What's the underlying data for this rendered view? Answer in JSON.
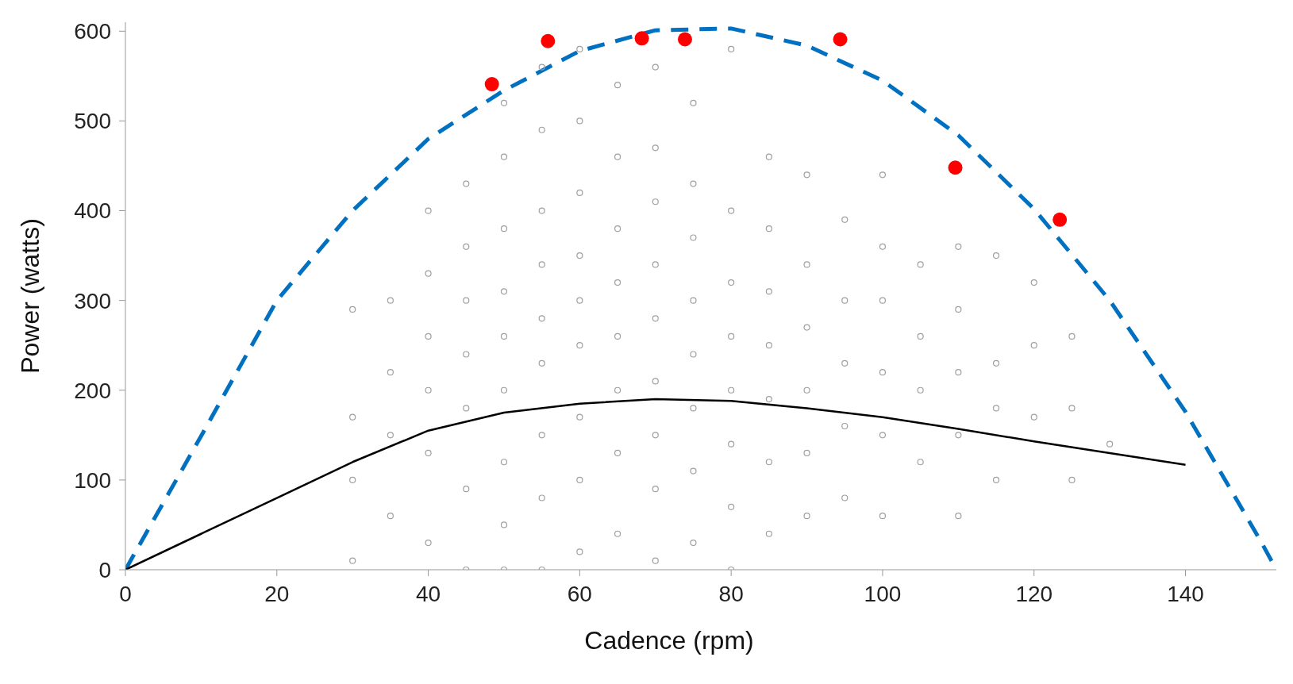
{
  "chart_data": {
    "type": "scatter",
    "xlabel": "Cadence (rpm)",
    "ylabel": "Power (watts)",
    "xlim": [
      0,
      152
    ],
    "ylim": [
      0,
      610
    ],
    "xticks": [
      0,
      20,
      40,
      60,
      80,
      100,
      120,
      140
    ],
    "yticks": [
      0,
      100,
      200,
      300,
      400,
      500,
      600
    ],
    "marker": "circle",
    "series": [
      {
        "color": "#a0a0a0",
        "x": [
          30,
          30,
          30,
          30,
          35,
          35,
          35,
          35,
          40,
          40,
          40,
          40,
          40,
          40,
          45,
          45,
          45,
          45,
          45,
          45,
          45,
          50,
          50,
          50,
          50,
          50,
          50,
          50,
          50,
          50,
          55,
          55,
          55,
          55,
          55,
          55,
          55,
          55,
          55,
          60,
          60,
          60,
          60,
          60,
          60,
          60,
          60,
          60,
          65,
          65,
          65,
          65,
          65,
          65,
          65,
          65,
          70,
          70,
          70,
          70,
          70,
          70,
          70,
          70,
          70,
          75,
          75,
          75,
          75,
          75,
          75,
          75,
          75,
          80,
          80,
          80,
          80,
          80,
          80,
          80,
          80,
          85,
          85,
          85,
          85,
          85,
          85,
          85,
          90,
          90,
          90,
          90,
          90,
          90,
          95,
          95,
          95,
          95,
          95,
          100,
          100,
          100,
          100,
          100,
          100,
          105,
          105,
          105,
          105,
          110,
          110,
          110,
          110,
          110,
          115,
          115,
          115,
          115,
          120,
          120,
          120,
          125,
          125,
          125,
          130
        ],
        "values": [
          10,
          100,
          170,
          290,
          60,
          150,
          220,
          300,
          30,
          130,
          200,
          260,
          330,
          400,
          0,
          90,
          180,
          240,
          300,
          360,
          430,
          0,
          50,
          120,
          200,
          260,
          310,
          380,
          460,
          520,
          0,
          80,
          150,
          230,
          280,
          340,
          400,
          490,
          560,
          20,
          100,
          170,
          250,
          300,
          350,
          420,
          500,
          580,
          40,
          130,
          200,
          260,
          320,
          380,
          460,
          540,
          10,
          90,
          150,
          210,
          280,
          340,
          410,
          470,
          560,
          30,
          110,
          180,
          240,
          300,
          370,
          430,
          520,
          0,
          70,
          140,
          200,
          260,
          320,
          400,
          580,
          40,
          120,
          190,
          250,
          310,
          380,
          460,
          60,
          130,
          200,
          270,
          340,
          440,
          80,
          160,
          230,
          300,
          390,
          60,
          150,
          220,
          300,
          360,
          440,
          120,
          200,
          260,
          340,
          60,
          150,
          220,
          290,
          360,
          100,
          180,
          230,
          350,
          170,
          250,
          320,
          100,
          180,
          260,
          140
        ]
      },
      {
        "color": "#ff0000",
        "x": [
          48.4,
          55.8,
          68.2,
          73.9,
          94.4,
          109.6,
          123.4
        ],
        "values": [
          541,
          589,
          592,
          591,
          591,
          448,
          390
        ]
      },
      {
        "type": "line",
        "color": "#0070c0",
        "line_style": "dashed",
        "marker": "none",
        "x": [
          0,
          10,
          20,
          30,
          40,
          50,
          60,
          70,
          80,
          90,
          100,
          110,
          120,
          130,
          140,
          150,
          152
        ],
        "values": [
          0,
          149,
          300,
          400,
          480,
          534,
          578,
          601,
          603,
          584,
          545,
          484,
          402,
          300,
          176,
          31,
          0
        ]
      },
      {
        "type": "line",
        "color": "#000000",
        "line_style": "solid",
        "marker": "none",
        "x": [
          0,
          10,
          20,
          30,
          40,
          50,
          60,
          70,
          80,
          90,
          100,
          110,
          120,
          130,
          140
        ],
        "values": [
          0,
          40,
          80,
          120,
          155,
          175,
          185,
          190,
          188,
          180,
          170,
          157,
          143,
          130,
          117
        ]
      }
    ]
  }
}
